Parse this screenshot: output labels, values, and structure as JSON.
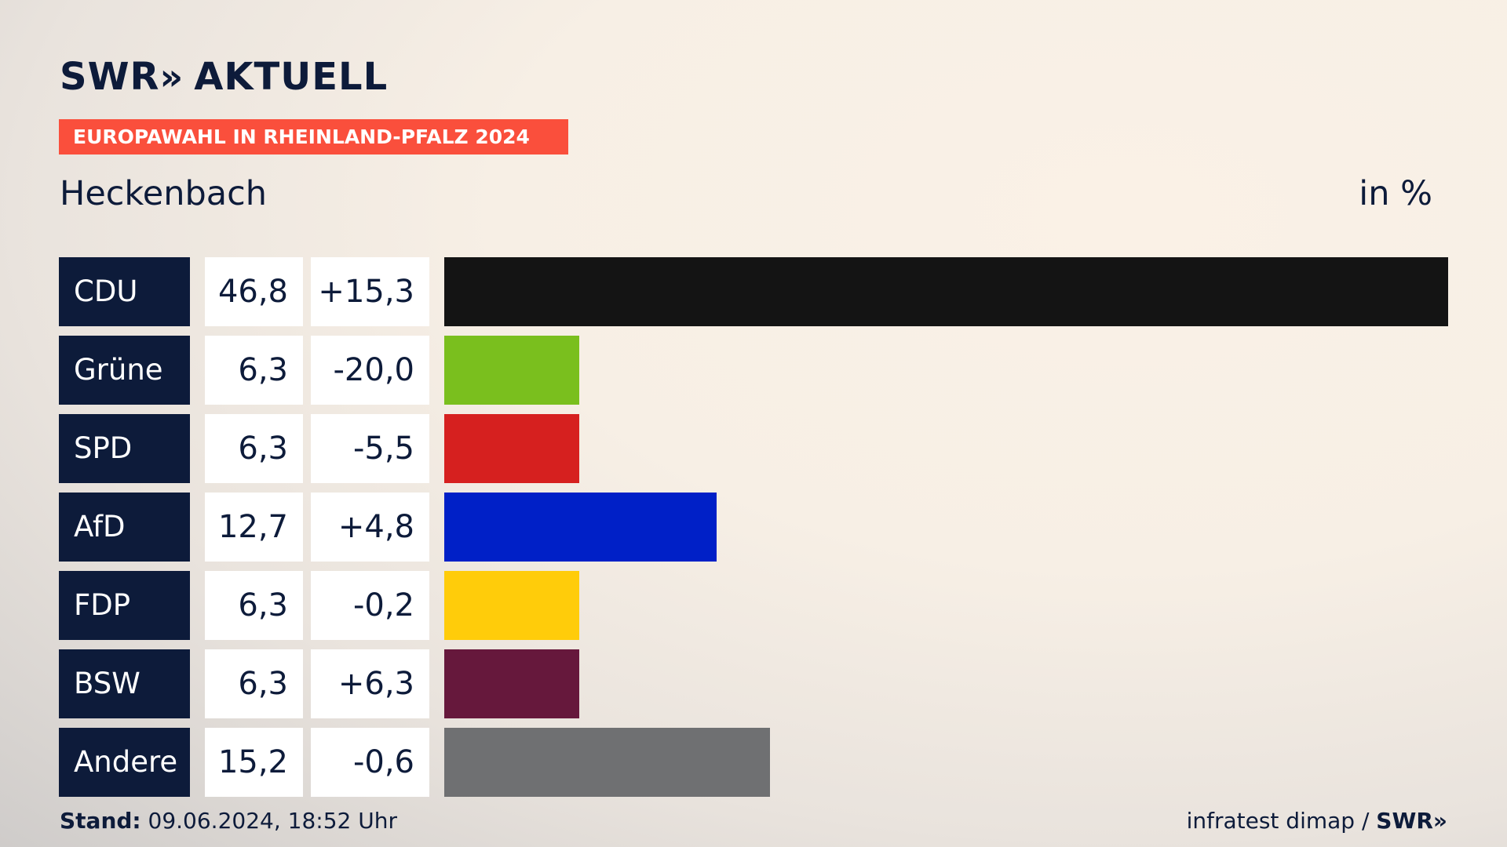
{
  "header": {
    "logo": "SWR",
    "logo_chevrons": "»",
    "logo_suffix": "AKTUELL",
    "banner": "EUROPAWAHL IN RHEINLAND-PFALZ 2024",
    "place": "Heckenbach",
    "unit": "in %"
  },
  "chart_data": {
    "type": "bar",
    "orientation": "horizontal",
    "title": "Heckenbach",
    "unit": "in %",
    "categories": [
      "CDU",
      "Grüne",
      "SPD",
      "AfD",
      "FDP",
      "BSW",
      "Andere"
    ],
    "values": [
      46.8,
      6.3,
      6.3,
      12.7,
      6.3,
      6.3,
      15.2
    ],
    "value_labels": [
      "46,8",
      "6,3",
      "6,3",
      "12,7",
      "6,3",
      "6,3",
      "15,2"
    ],
    "diff_labels": [
      "+15,3",
      "-20,0",
      "-5,5",
      "+4,8",
      "-0,2",
      "+6,3",
      "-0,6"
    ],
    "colors": [
      "#141414",
      "#7abf1e",
      "#d6201f",
      "#0020c7",
      "#ffcc0a",
      "#66183c",
      "#6f7072"
    ],
    "xlim": [
      0,
      46.8
    ]
  },
  "footer": {
    "stand_label": "Stand:",
    "stand_value": " 09.06.2024, 18:52 Uhr",
    "source": "infratest dimap / ",
    "source_brand": "SWR»"
  }
}
